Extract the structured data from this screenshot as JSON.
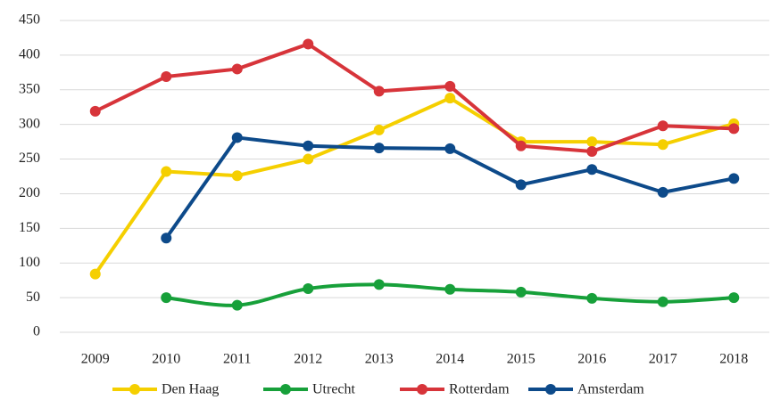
{
  "chart_data": {
    "type": "line",
    "categories": [
      "2009",
      "2010",
      "2011",
      "2012",
      "2013",
      "2014",
      "2015",
      "2016",
      "2017",
      "2018"
    ],
    "series": [
      {
        "name": "Den Haag",
        "color": "#f5cf00",
        "values": [
          84,
          232,
          226,
          250,
          292,
          338,
          275,
          275,
          271,
          301
        ]
      },
      {
        "name": "Utrecht",
        "color": "#17a03a",
        "smooth": true,
        "values": [
          null,
          50,
          39,
          63,
          69,
          62,
          58,
          49,
          44,
          50
        ]
      },
      {
        "name": "Rotterdam",
        "color": "#d7343a",
        "values": [
          319,
          369,
          380,
          416,
          348,
          355,
          269,
          261,
          298,
          294
        ]
      },
      {
        "name": "Amsterdam",
        "color": "#0d4a8a",
        "values": [
          null,
          136,
          281,
          269,
          266,
          265,
          213,
          235,
          202,
          222
        ]
      }
    ],
    "ylim": [
      0,
      450
    ],
    "yticks": [
      0,
      50,
      100,
      150,
      200,
      250,
      300,
      350,
      400,
      450
    ],
    "grid": true
  }
}
